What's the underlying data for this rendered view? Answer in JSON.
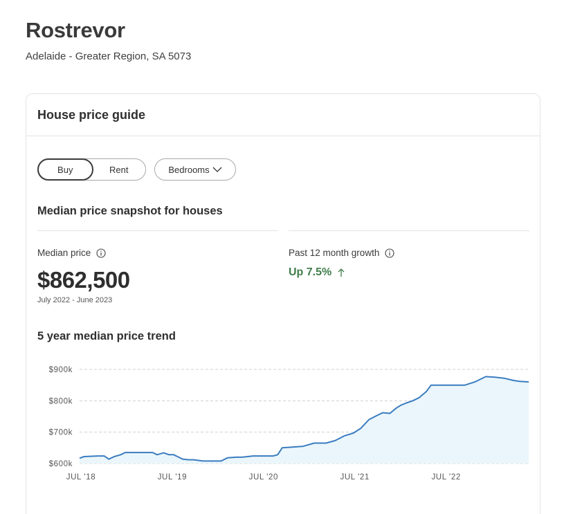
{
  "header": {
    "suburb": "Rostrevor",
    "region": "Adelaide - Greater Region, SA 5073"
  },
  "card": {
    "title": "House price guide",
    "toggle": {
      "buy_label": "Buy",
      "rent_label": "Rent",
      "selected": "Buy"
    },
    "bedrooms_label": "Bedrooms",
    "snapshot_title": "Median price snapshot for houses",
    "median": {
      "label": "Median price",
      "value": "$862,500",
      "period": "July 2022 - June 2023"
    },
    "growth": {
      "label": "Past 12 month growth",
      "value": "Up 7.5%",
      "color": "#3f7d4a"
    },
    "trend_title": "5 year median price trend"
  },
  "chart_data": {
    "type": "area",
    "line_color": "#3a7cc0",
    "fill_color": "#eaf6fb",
    "ylim": [
      600,
      900
    ],
    "yticks": [
      {
        "value": 900,
        "label": "$900k"
      },
      {
        "value": 800,
        "label": "$800k"
      },
      {
        "value": 700,
        "label": "$700k"
      },
      {
        "value": 600,
        "label": "$600k"
      }
    ],
    "xlim": [
      2018.5,
      2023.42
    ],
    "xticks": [
      {
        "value": 2018.5,
        "label": "JUL '18"
      },
      {
        "value": 2019.5,
        "label": "JUL '19"
      },
      {
        "value": 2020.5,
        "label": "JUL '20"
      },
      {
        "value": 2021.5,
        "label": "JUL '21"
      },
      {
        "value": 2022.5,
        "label": "JUL '22"
      }
    ],
    "grid": true,
    "series": [
      {
        "x": [
          2018.5,
          2018.55,
          2018.7,
          2018.77,
          2018.82,
          2018.88,
          2018.95,
          2019.0,
          2019.1,
          2019.3,
          2019.35,
          2019.42,
          2019.48,
          2019.53,
          2019.63,
          2019.7,
          2019.75,
          2019.85,
          2019.95,
          2020.05,
          2020.12,
          2020.22,
          2020.28,
          2020.4,
          2020.45,
          2020.62,
          2020.67,
          2020.72,
          2020.82,
          2020.95,
          2021.07,
          2021.2,
          2021.3,
          2021.4,
          2021.5,
          2021.58,
          2021.67,
          2021.75,
          2021.82,
          2021.9,
          2021.97,
          2022.02,
          2022.08,
          2022.15,
          2022.22,
          2022.3,
          2022.35,
          2022.42,
          2022.48,
          2022.55,
          2022.62,
          2022.72,
          2022.83,
          2022.95,
          2023.05,
          2023.15,
          2023.25,
          2023.32,
          2023.42
        ],
        "y": [
          617,
          622,
          624,
          624,
          614,
          622,
          628,
          635,
          635,
          635,
          628,
          634,
          628,
          628,
          614,
          612,
          612,
          608,
          608,
          608,
          618,
          620,
          620,
          624,
          624,
          624,
          628,
          650,
          652,
          655,
          665,
          665,
          673,
          688,
          697,
          712,
          740,
          752,
          762,
          760,
          777,
          786,
          793,
          800,
          810,
          830,
          850,
          850,
          850,
          850,
          850,
          850,
          860,
          877,
          875,
          872,
          865,
          862,
          860
        ]
      }
    ]
  }
}
